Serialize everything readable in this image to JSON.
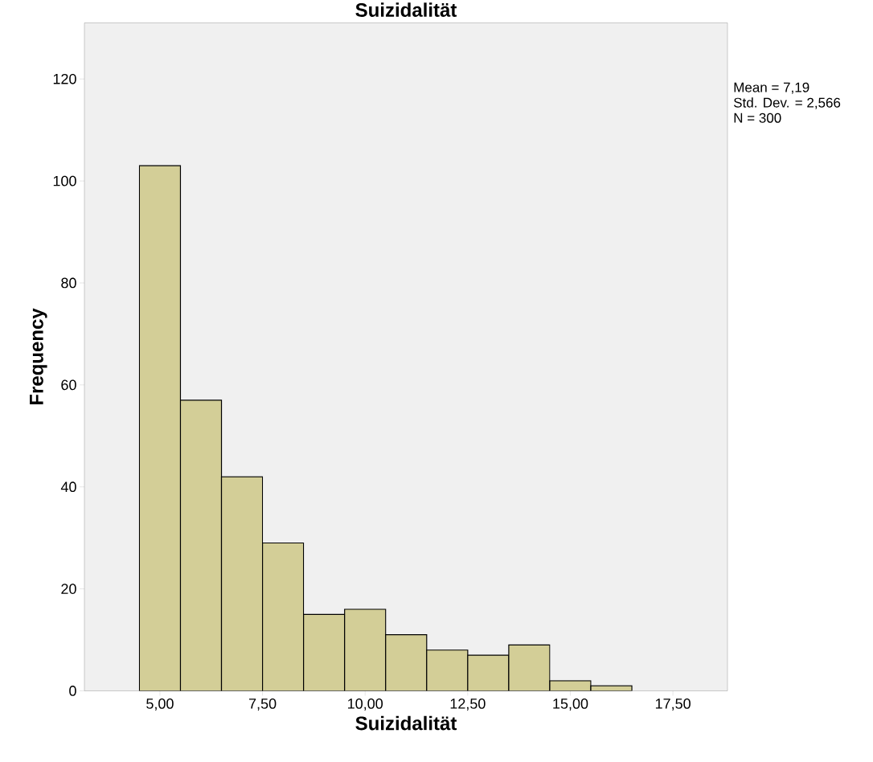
{
  "chart_data": {
    "type": "histogram",
    "title": "Suizidalität",
    "xlabel": "Suizidalität",
    "ylabel": "Frequency",
    "bins": [
      4.5,
      5.5,
      6.5,
      7.5,
      8.5,
      9.5,
      10.5,
      11.5,
      12.5,
      13.5,
      14.5,
      15.5,
      16.5
    ],
    "values": [
      103,
      57,
      42,
      29,
      15,
      16,
      11,
      8,
      7,
      9,
      2,
      1
    ],
    "color": "#d3ce97",
    "xlim": [
      3.16,
      18.83
    ],
    "ylim": [
      0,
      131
    ],
    "xticks": [
      {
        "value": 5,
        "label": "5,00"
      },
      {
        "value": 7.5,
        "label": "7,50"
      },
      {
        "value": 10,
        "label": "10,00"
      },
      {
        "value": 12.5,
        "label": "12,50"
      },
      {
        "value": 15,
        "label": "15,00"
      },
      {
        "value": 17.5,
        "label": "17,50"
      }
    ],
    "yticks": [
      0,
      20,
      40,
      60,
      80,
      100,
      120
    ],
    "annotations": [
      "Mean = 7,19",
      "Std. Dev. = 2,566",
      "N = 300"
    ]
  }
}
